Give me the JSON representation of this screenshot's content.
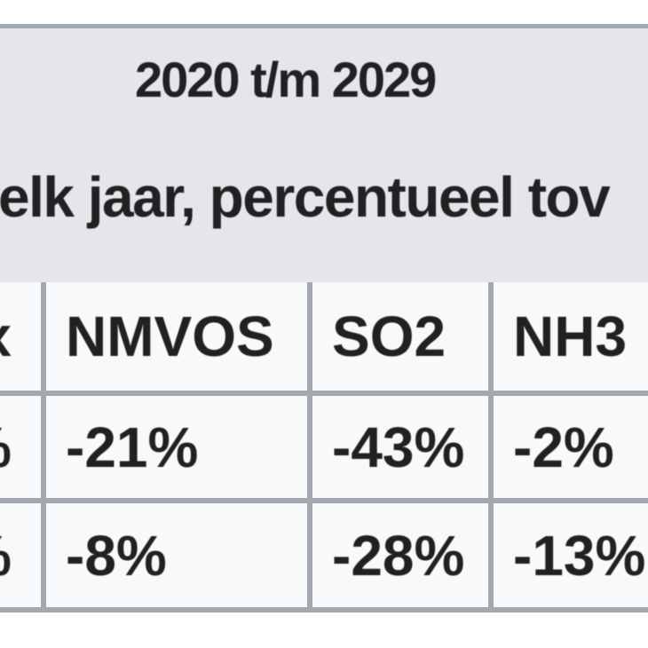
{
  "caption": {
    "line1": "2020 t/m 2029",
    "line2": "elk jaar, percentueel tov"
  },
  "table": {
    "header": {
      "col1_fragment": "x",
      "cols": [
        "NMVOS",
        "SO2",
        "NH3"
      ]
    },
    "rows": [
      {
        "col1_fragment": "%",
        "values": [
          "-21%",
          "-43%",
          "-2%"
        ]
      },
      {
        "col1_fragment": "%",
        "values": [
          "-8%",
          "-28%",
          "-13%"
        ]
      }
    ]
  },
  "colors": {
    "page_background": "#ffffff",
    "table_border": "#a2a9b1",
    "caption_background": "#e5e6e9",
    "cell_background": "#f8f9fa",
    "text": "#202122"
  }
}
